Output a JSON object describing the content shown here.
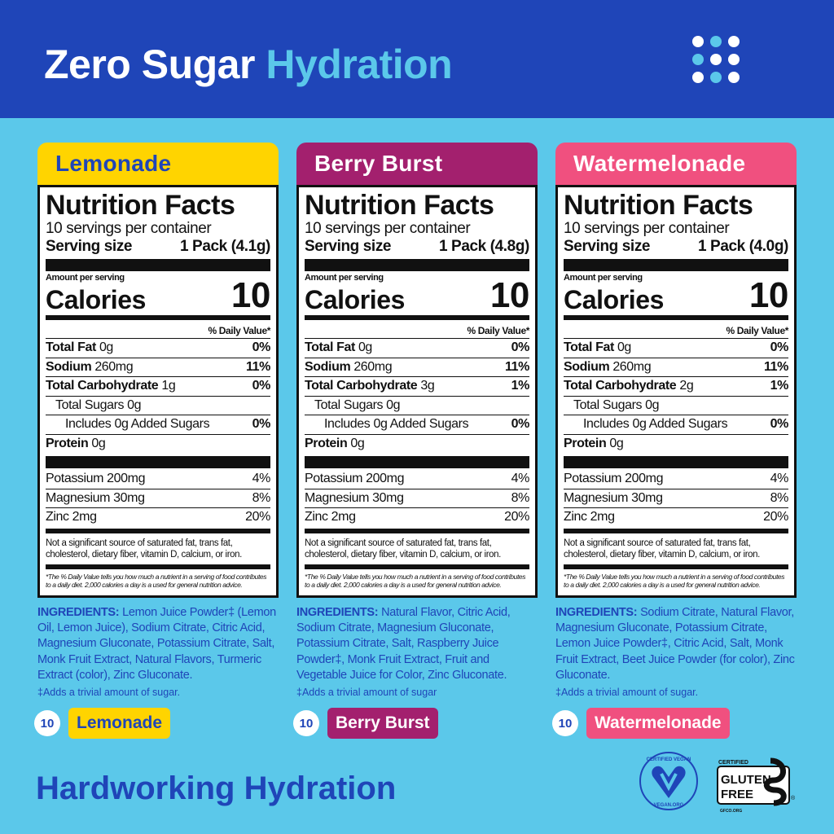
{
  "header": {
    "title_part1": "Zero Sugar",
    "title_part2": "Hydration",
    "icon": "dots-grid-icon",
    "bg_color": "#1f45b8"
  },
  "footer": {
    "tagline": "Hardworking Hydration",
    "vegan_badge": "CERTIFIED VEGAN VEGAN.ORG",
    "gluten_free_badge": {
      "top": "CERTIFIED",
      "line1": "GLUTEN",
      "line2": "FREE",
      "site": "GFCO.ORG"
    }
  },
  "common": {
    "nutrition_facts": "Nutrition Facts",
    "servings": "10 servings per container",
    "serving_size_label": "Serving size",
    "amount_per_serving": "Amount per serving",
    "calories_label": "Calories",
    "daily_value": "% Daily Value*",
    "total_fat": "Total Fat",
    "sodium": "Sodium",
    "total_carb": "Total Carbohydrate",
    "total_sugars": "Total Sugars 0g",
    "added_sugars": "Includes 0g Added Sugars",
    "added_sugars_dv": "0%",
    "protein": "Protein",
    "protein_amt": "0g",
    "not_significant": "Not a significant source of saturated fat, trans fat, cholesterol, dietary fiber, vitamin D, calcium, or iron.",
    "disclaimer": "*The % Daily Value tells you how much a nutrient in a serving of food contributes to a daily diet. 2,000 calories a day is a used for general nutrition advice.",
    "ingredients_label": "INGREDIENTS:",
    "count": "10"
  },
  "products": [
    {
      "name": "Lemonade",
      "color": "#ffd400",
      "text_color": "#1f45b8",
      "serving_size": "1 Pack (4.1g)",
      "calories": "10",
      "fat": "0g",
      "fat_dv": "0%",
      "sodium": "260mg",
      "sodium_dv": "11%",
      "carb": "1g",
      "carb_dv": "0%",
      "minerals": [
        {
          "name": "Potassium 200mg",
          "dv": "4%"
        },
        {
          "name": "Magnesium 30mg",
          "dv": "8%"
        },
        {
          "name": "Zinc 2mg",
          "dv": "20%"
        }
      ],
      "ingredients": "Lemon Juice Powder‡ (Lemon Oil, Lemon Juice), Sodium Citrate, Citric Acid, Magnesium Gluconate, Potassium Citrate, Salt, Monk Fruit Extract, Natural Flavors, Turmeric Extract (color), Zinc Gluconate.",
      "footnote": "‡Adds a trivial amount of sugar."
    },
    {
      "name": "Berry Burst",
      "color": "#a3206e",
      "text_color": "#ffffff",
      "serving_size": "1 Pack (4.8g)",
      "calories": "10",
      "fat": "0g",
      "fat_dv": "0%",
      "sodium": "260mg",
      "sodium_dv": "11%",
      "carb": "3g",
      "carb_dv": "1%",
      "minerals": [
        {
          "name": "Potassium 200mg",
          "dv": "4%"
        },
        {
          "name": "Magnesium 30mg",
          "dv": "8%"
        },
        {
          "name": "Zinc 2mg",
          "dv": "20%"
        }
      ],
      "ingredients": "Natural Flavor, Citric Acid, Sodium Citrate, Magnesium Gluconate, Potassium Citrate, Salt, Raspberry Juice Powder‡, Monk Fruit Extract, Fruit and Vegetable Juice for Color, Zinc Gluconate.",
      "footnote": "‡Adds a trivial amount of sugar"
    },
    {
      "name": "Watermelonade",
      "color": "#f0507f",
      "text_color": "#ffffff",
      "serving_size": "1 Pack (4.0g)",
      "calories": "10",
      "fat": "0g",
      "fat_dv": "0%",
      "sodium": "260mg",
      "sodium_dv": "11%",
      "carb": "2g",
      "carb_dv": "1%",
      "minerals": [
        {
          "name": "Potassium 200mg",
          "dv": "4%"
        },
        {
          "name": "Magnesium 30mg",
          "dv": "8%"
        },
        {
          "name": "Zinc 2mg",
          "dv": "20%"
        }
      ],
      "ingredients": "Sodium Citrate, Natural Flavor, Magnesium Gluconate, Potassium Citrate, Lemon Juice Powder‡, Citric Acid, Salt, Monk Fruit Extract, Beet Juice Powder (for color), Zinc Gluconate.",
      "footnote": "‡Adds a trivial amount of sugar."
    }
  ]
}
